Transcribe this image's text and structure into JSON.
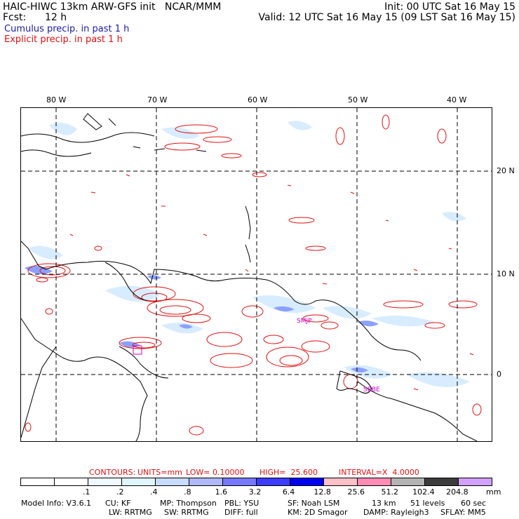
{
  "header": {
    "line1_left": "HAIC-HIWC 13km ARW-GFS init   NCAR/MMM",
    "line2_left_label": "Fcst:",
    "line2_left_value": "12 h",
    "line1_right": "Init: 00 UTC Sat 16 May 15",
    "line2_right": "Valid: 12 UTC Sat 16 May 15 (09 LST Sat 16 May 15)",
    "cumulus_legend": "Cumulus precip. in past 1 h",
    "explicit_legend": "Explicit precip. in past 1 h"
  },
  "map": {
    "lon_labels": [
      "80 W",
      "70 W",
      "60 W",
      "50 W",
      "40 W"
    ],
    "lat_labels": [
      "20 N",
      "10 N",
      "0"
    ],
    "station_labels": [
      "SMJP",
      "SBBE"
    ],
    "colors": {
      "coast": "#000000",
      "grid": "#000000",
      "explicit": "#e01010",
      "cumulus_light": "#d8ecff",
      "cumulus_mid": "#8ca0ff",
      "station": "#cc00cc"
    }
  },
  "contours": {
    "label": "CONTOURS:",
    "units": "UNITS=mm",
    "low": "LOW= 0.10000",
    "high": "HIGH=  25.600",
    "interval": "INTERVAL=X  4.0000"
  },
  "colorbar": {
    "ticks": [
      ".1",
      ".2",
      ".4",
      ".8",
      "1.6",
      "3.2",
      "6.4",
      "12.8",
      "25.6",
      "51.2",
      "102.4",
      "204.8"
    ],
    "unit": "mm",
    "colors": [
      "#ffffff",
      "#ffffff",
      "#f0f8ff",
      "#e0f6ff",
      "#c8dcff",
      "#b0b8ff",
      "#7878ff",
      "#3c3cff",
      "#0000f0",
      "#ffc0c8",
      "#ff8cb4",
      "#b4b4b4",
      "#3c3c3c",
      "#d2a0ff"
    ]
  },
  "footer": {
    "line1": [
      "Model Info: V3.6.1",
      "CU: KF",
      "MP: Thompson",
      "PBL: YSU",
      "SF: Noah LSM",
      "13 km",
      "51 levels",
      "60 sec"
    ],
    "line2": [
      "LW: RRTMG",
      "SW: RRTMG",
      "DIFF: full",
      "KM: 2D Smagor",
      "DAMP: Rayleigh3",
      "SFLAY: MM5"
    ]
  }
}
